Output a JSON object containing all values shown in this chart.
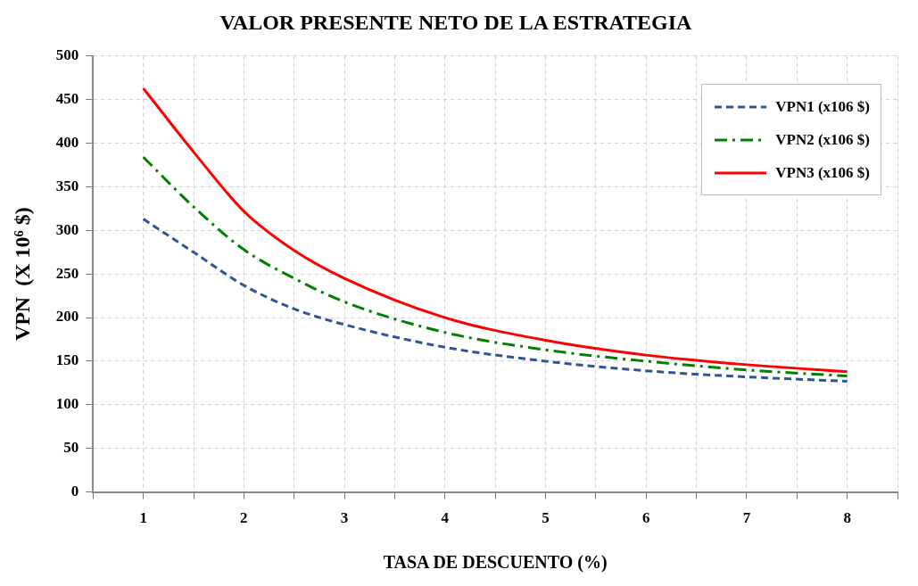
{
  "chart_data": {
    "type": "line",
    "title": "VALOR PRESENTE NETO DE LA ESTRATEGIA",
    "xlabel": "TASA DE DESCUENTO (%)",
    "ylabel": "VPN  (X 10⁶ $)",
    "x": [
      1,
      1.5,
      2,
      2.5,
      3,
      4,
      5,
      6,
      7,
      8
    ],
    "series": [
      {
        "name": "VPN1 (x106 $)",
        "color": "#2e5597",
        "line_style": "dashed",
        "values": [
          313,
          275,
          237,
          210,
          192,
          166,
          150,
          139,
          132,
          127
        ]
      },
      {
        "name": "VPN2 (x106 $)",
        "color": "#008000",
        "line_style": "dashdot",
        "values": [
          384,
          327,
          278,
          245,
          218,
          183,
          163,
          150,
          140,
          133
        ]
      },
      {
        "name": "VPN3 (x106 $)",
        "color": "#ff0000",
        "line_style": "solid",
        "values": [
          463,
          390,
          322,
          277,
          245,
          200,
          174,
          157,
          146,
          138
        ]
      }
    ],
    "xlim": [
      0.5,
      8.5
    ],
    "xticks": [
      {
        "value": 0.5,
        "label": null
      },
      1,
      {
        "value": 1.5,
        "label": null
      },
      2,
      {
        "value": 2.5,
        "label": null
      },
      3,
      {
        "value": 3.5,
        "label": null
      },
      4,
      {
        "value": 4.5,
        "label": null
      },
      5,
      {
        "value": 5.5,
        "label": null
      },
      6,
      {
        "value": 6.5,
        "label": null
      },
      7,
      {
        "value": 7.5,
        "label": null
      },
      8,
      {
        "value": 8.5,
        "label": null
      }
    ],
    "ylim": [
      0,
      500
    ],
    "yticks": [
      0,
      50,
      100,
      150,
      200,
      250,
      300,
      350,
      400,
      450,
      500
    ],
    "grid": true,
    "legend": "top right",
    "marker": "none"
  }
}
